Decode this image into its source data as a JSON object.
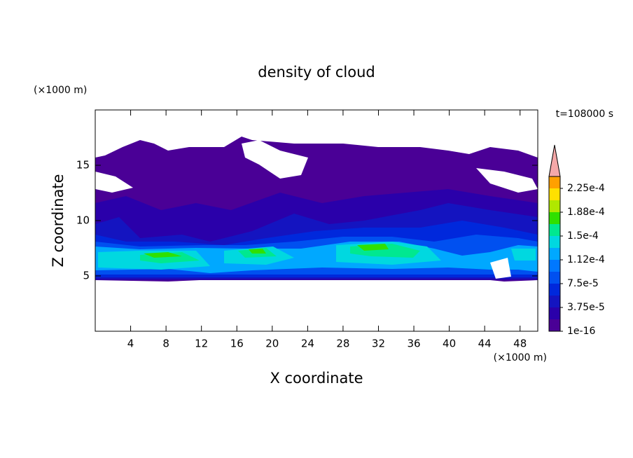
{
  "chart_data": {
    "type": "contour",
    "title": "density of cloud",
    "time_label": "t=108000 s",
    "x_label": "X coordinate",
    "y_label": "Z coordinate",
    "x_unit": "(×1000 m)",
    "y_unit": "(×1000 m)",
    "xlim": [
      0,
      50
    ],
    "xticks": [
      4,
      8,
      12,
      16,
      20,
      24,
      28,
      32,
      36,
      40,
      44,
      48
    ],
    "ylim": [
      0,
      20
    ],
    "yticks": [
      5,
      10,
      15
    ],
    "colorbar": {
      "clim": [
        1e-16,
        0.00024375
      ],
      "ticks": [
        {
          "value": 1e-16,
          "label": "1e-16"
        },
        {
          "value": 3.75e-05,
          "label": "3.75e-5"
        },
        {
          "value": 7.5e-05,
          "label": "7.5e-5"
        },
        {
          "value": 0.0001125,
          "label": "1.12e-4"
        },
        {
          "value": 0.00015,
          "label": "1.5e-4"
        },
        {
          "value": 0.0001875,
          "label": "1.88e-4"
        },
        {
          "value": 0.000225,
          "label": "2.25e-4"
        }
      ],
      "colors": [
        "#4a0096",
        "#2a00aa",
        "#1414c0",
        "#0028dc",
        "#0050f0",
        "#0078ff",
        "#00a8ff",
        "#00d8e0",
        "#00e890",
        "#30e000",
        "#b0e800",
        "#ffe000",
        "#ffa000",
        "#ff5000",
        "#ff1800"
      ],
      "extend_color": "#f4a8a8"
    }
  }
}
